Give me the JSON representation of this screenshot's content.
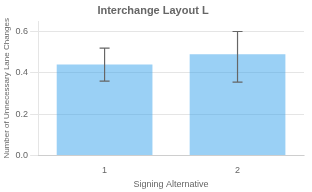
{
  "chart_data": {
    "type": "bar",
    "title": "Interchange Layout L",
    "xlabel": "Signing Alternative",
    "ylabel": "Number of Unnecessary Lane Changes",
    "categories": [
      "1",
      "2"
    ],
    "values": [
      0.44,
      0.49
    ],
    "ci_lower": [
      0.36,
      0.355
    ],
    "ci_upper": [
      0.52,
      0.6
    ],
    "ylim": [
      0.0,
      0.65
    ],
    "yticks": [
      {
        "value": 0,
        "label": "0.0"
      },
      0.2,
      0.4,
      0.6
    ],
    "grid": true
  }
}
